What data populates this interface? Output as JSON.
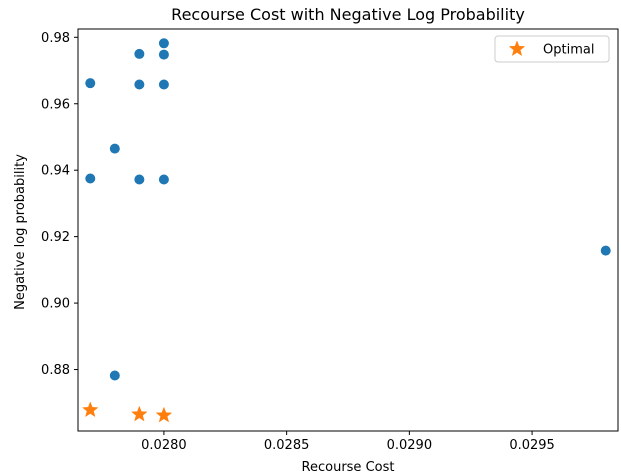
{
  "chart_data": {
    "type": "scatter",
    "title": "Recourse Cost with Negative Log Probability",
    "xlabel": "Recourse Cost",
    "ylabel": "Negative log probability",
    "xlim": [
      0.02765,
      0.02985
    ],
    "ylim": [
      0.8615,
      0.9825
    ],
    "xticks": [
      0.028,
      0.0285,
      0.029,
      0.0295
    ],
    "xtick_labels": [
      "0.0280",
      "0.0285",
      "0.0290",
      "0.0295"
    ],
    "yticks": [
      0.88,
      0.9,
      0.92,
      0.94,
      0.96,
      0.98
    ],
    "ytick_labels": [
      "0.88",
      "0.90",
      "0.92",
      "0.94",
      "0.96",
      "0.98"
    ],
    "grid": false,
    "legend": {
      "placement": "top-right",
      "entries": [
        "Optimal"
      ]
    },
    "series": [
      {
        "marker": "circle",
        "color": "#1f77b4",
        "points": [
          {
            "x": 0.0277,
            "y": 0.9662
          },
          {
            "x": 0.0277,
            "y": 0.9375
          },
          {
            "x": 0.0278,
            "y": 0.9465
          },
          {
            "x": 0.0278,
            "y": 0.8782
          },
          {
            "x": 0.0279,
            "y": 0.975
          },
          {
            "x": 0.0279,
            "y": 0.9658
          },
          {
            "x": 0.0279,
            "y": 0.9372
          },
          {
            "x": 0.028,
            "y": 0.9782
          },
          {
            "x": 0.028,
            "y": 0.9748
          },
          {
            "x": 0.028,
            "y": 0.9658
          },
          {
            "x": 0.028,
            "y": 0.9372
          },
          {
            "x": 0.0298,
            "y": 0.9158
          }
        ]
      },
      {
        "name": "Optimal",
        "marker": "star",
        "color": "#ff7f0e",
        "points": [
          {
            "x": 0.0277,
            "y": 0.8678
          },
          {
            "x": 0.0279,
            "y": 0.8665
          },
          {
            "x": 0.028,
            "y": 0.8662
          }
        ]
      }
    ]
  }
}
